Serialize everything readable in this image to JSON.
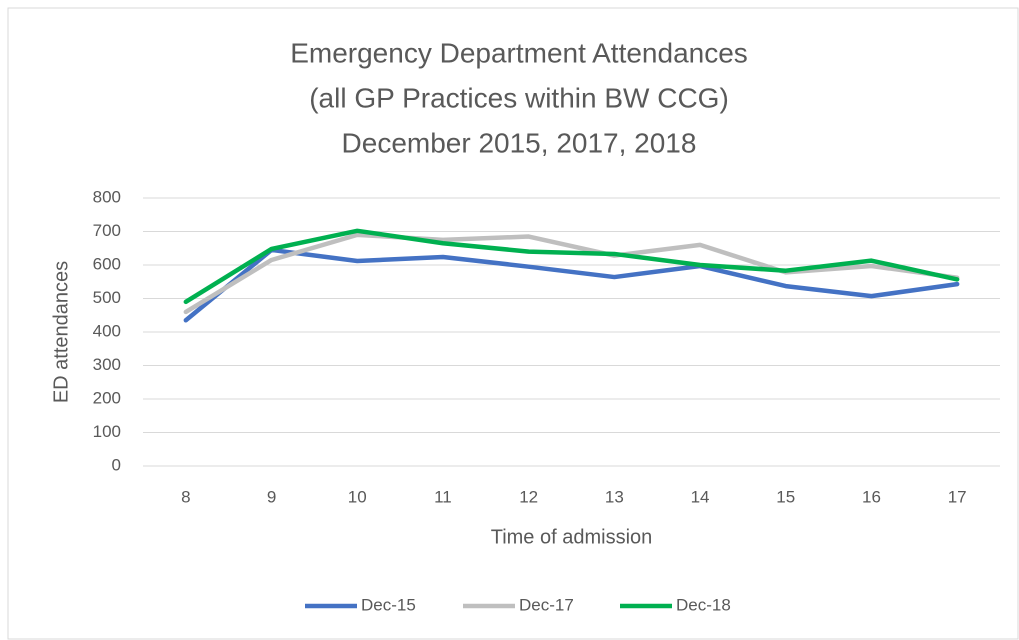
{
  "chart_data": {
    "type": "line",
    "title": [
      "Emergency Department Attendances",
      "(all GP Practices within BW CCG)",
      "December 2015, 2017, 2018"
    ],
    "x_label": "Time of admission",
    "y_label": "ED attendances",
    "categories": [
      "8",
      "9",
      "10",
      "11",
      "12",
      "13",
      "14",
      "15",
      "16",
      "17"
    ],
    "series": [
      {
        "name": "Dec-15",
        "color": "#4472c4",
        "values": [
          435,
          645,
          612,
          624,
          595,
          564,
          597,
          537,
          507,
          543
        ]
      },
      {
        "name": "Dec-17",
        "color": "#bfbfbf",
        "values": [
          460,
          615,
          690,
          675,
          685,
          628,
          660,
          578,
          597,
          562
        ]
      },
      {
        "name": "Dec-18",
        "color": "#00b050",
        "values": [
          490,
          648,
          702,
          665,
          640,
          633,
          600,
          583,
          613,
          557
        ]
      }
    ],
    "ylim": [
      0,
      800
    ],
    "yticks": [
      0,
      100,
      200,
      300,
      400,
      500,
      600,
      700,
      800
    ],
    "grid": true,
    "legend": "bottom"
  }
}
